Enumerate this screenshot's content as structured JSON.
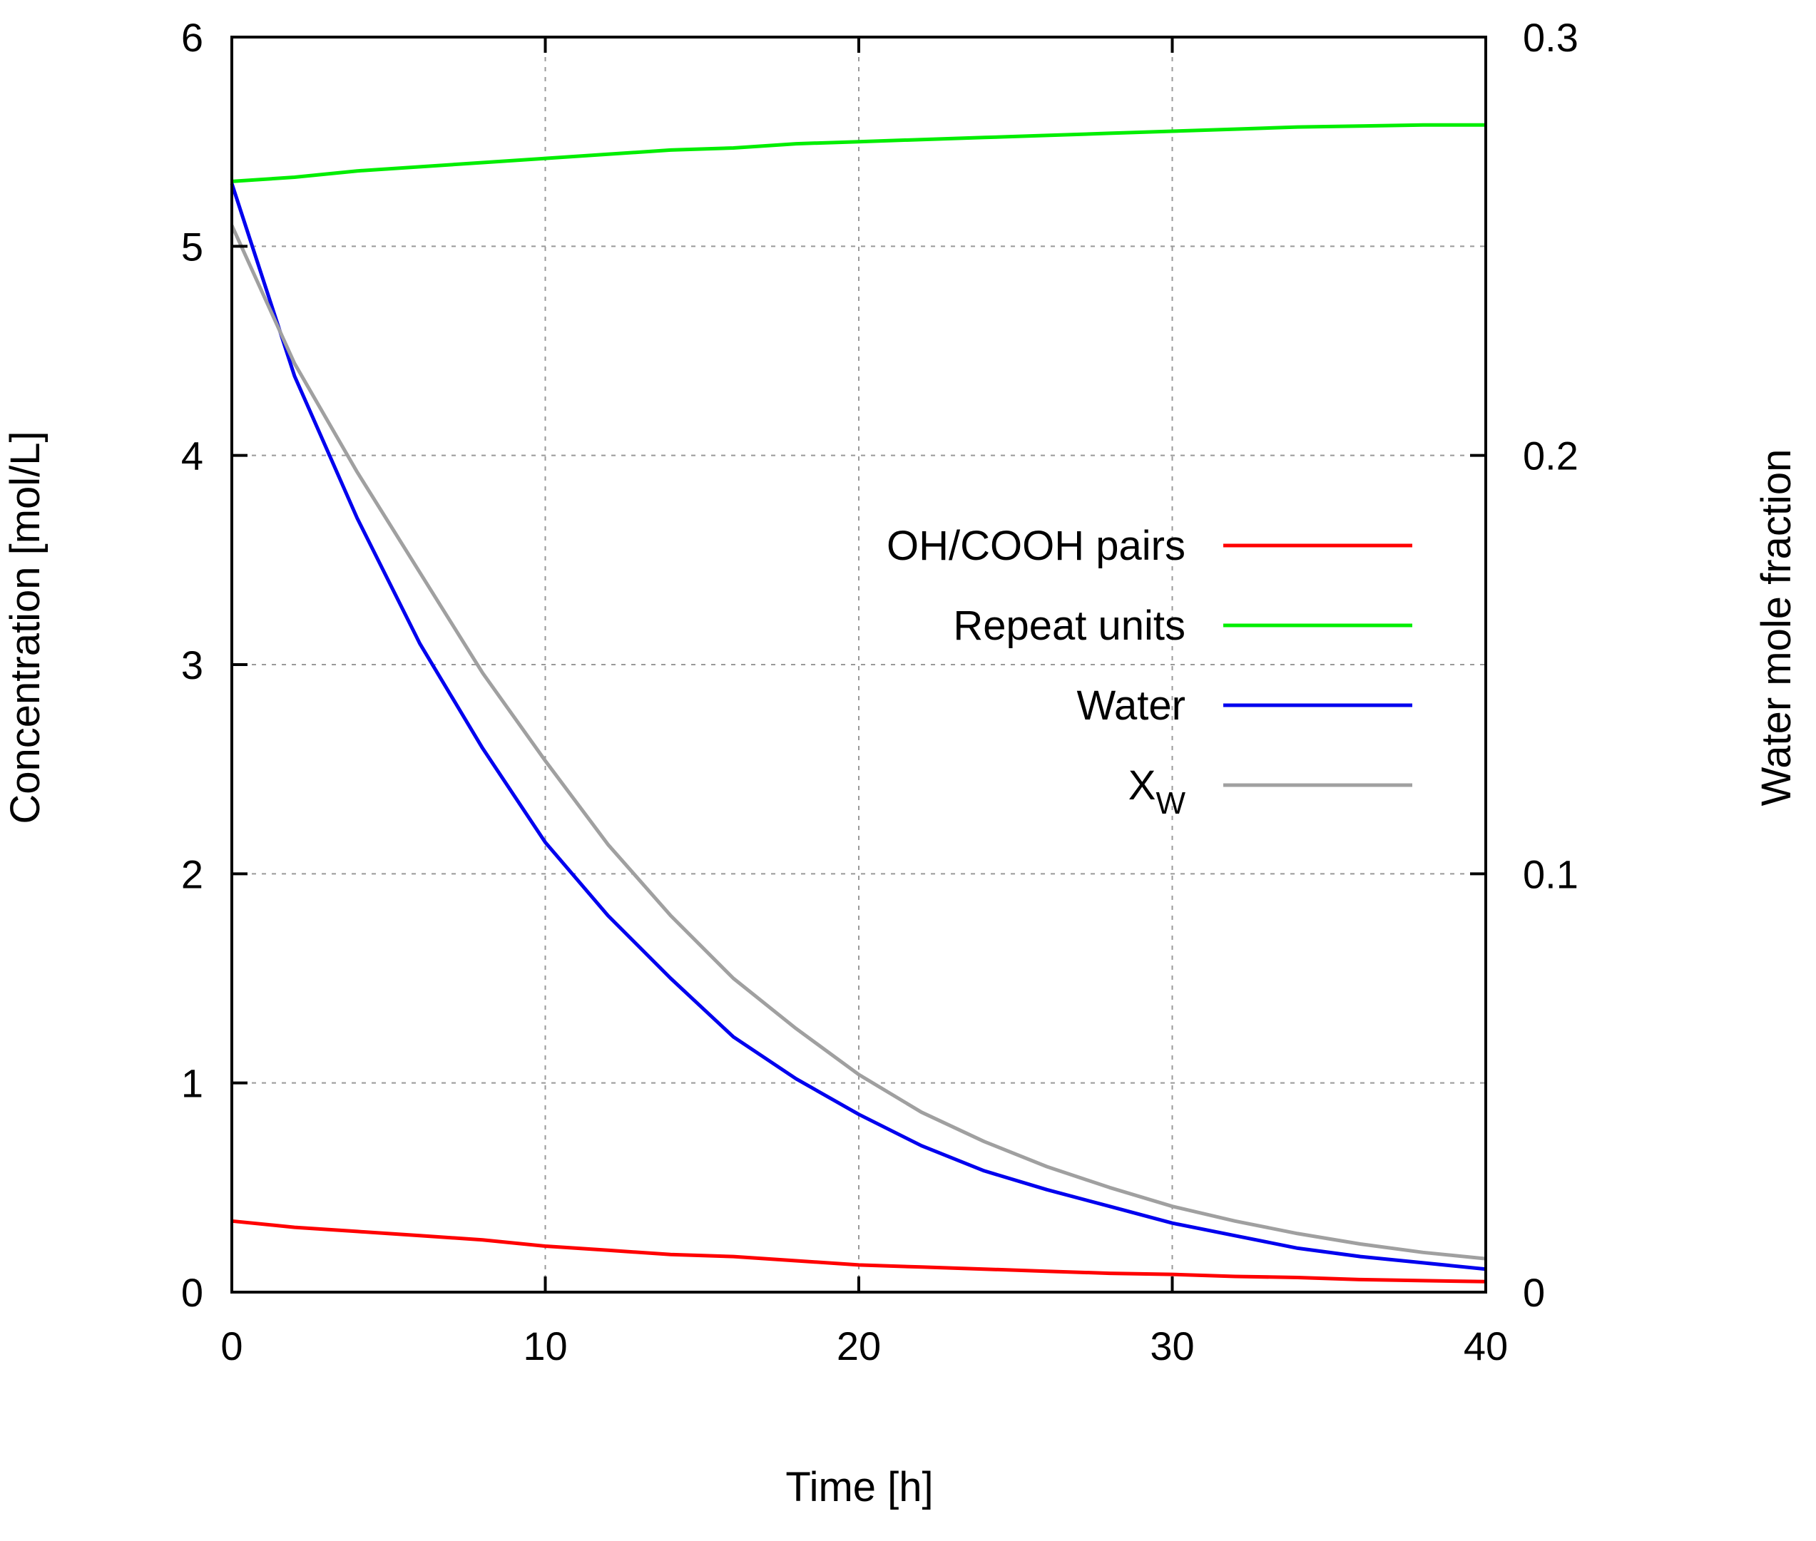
{
  "chart_data": {
    "type": "line",
    "title": "",
    "xlabel": "Time [h]",
    "ylabel": "Concentration [mol/L]",
    "y2label": "Water mole fraction",
    "xlim": [
      0,
      40
    ],
    "ylim": [
      0,
      6
    ],
    "y2lim": [
      0,
      0.3
    ],
    "x_ticks": [
      0,
      10,
      20,
      30,
      40
    ],
    "y_ticks": [
      0,
      1,
      2,
      3,
      4,
      5,
      6
    ],
    "y2_ticks": [
      0,
      0.1,
      0.2,
      0.3
    ],
    "x_tick_labels": [
      "0",
      "10",
      "20",
      "30",
      "40"
    ],
    "y_tick_labels": [
      "0",
      "1",
      "2",
      "3",
      "4",
      "5",
      "6"
    ],
    "y2_tick_labels": [
      "0",
      "0.1",
      "0.2",
      "0.3"
    ],
    "grid": true,
    "legend_position": "center-right",
    "x": [
      0,
      2,
      4,
      6,
      8,
      10,
      12,
      14,
      16,
      18,
      20,
      22,
      24,
      26,
      28,
      30,
      32,
      34,
      36,
      38,
      40
    ],
    "series": [
      {
        "name": "OH/COOH pairs",
        "color": "#ff0000",
        "axis": "left",
        "values": [
          0.34,
          0.31,
          0.29,
          0.27,
          0.25,
          0.22,
          0.2,
          0.18,
          0.17,
          0.15,
          0.13,
          0.12,
          0.11,
          0.1,
          0.09,
          0.085,
          0.075,
          0.07,
          0.06,
          0.055,
          0.05
        ]
      },
      {
        "name": "Repeat units",
        "color": "#00ee00",
        "axis": "left",
        "values": [
          5.31,
          5.33,
          5.36,
          5.38,
          5.4,
          5.42,
          5.44,
          5.46,
          5.47,
          5.49,
          5.5,
          5.51,
          5.52,
          5.53,
          5.54,
          5.55,
          5.56,
          5.57,
          5.575,
          5.58,
          5.58
        ]
      },
      {
        "name": "Water",
        "color": "#0000ee",
        "axis": "left",
        "values": [
          5.3,
          4.38,
          3.7,
          3.1,
          2.6,
          2.15,
          1.8,
          1.5,
          1.22,
          1.02,
          0.85,
          0.7,
          0.58,
          0.49,
          0.41,
          0.33,
          0.27,
          0.21,
          0.17,
          0.14,
          0.11
        ]
      },
      {
        "name": "X_W",
        "color": "#a0a0a0",
        "axis": "right",
        "values": [
          0.255,
          0.222,
          0.196,
          0.172,
          0.148,
          0.127,
          0.107,
          0.09,
          0.075,
          0.063,
          0.052,
          0.043,
          0.036,
          0.03,
          0.025,
          0.0205,
          0.017,
          0.014,
          0.0115,
          0.0095,
          0.008
        ]
      }
    ],
    "legend": [
      {
        "label": "OH/COOH pairs",
        "color": "#ff0000"
      },
      {
        "label": "Repeat units",
        "color": "#00ee00"
      },
      {
        "label": "Water",
        "color": "#0000ee"
      },
      {
        "label": "X",
        "sub": "W",
        "color": "#a0a0a0"
      }
    ]
  }
}
